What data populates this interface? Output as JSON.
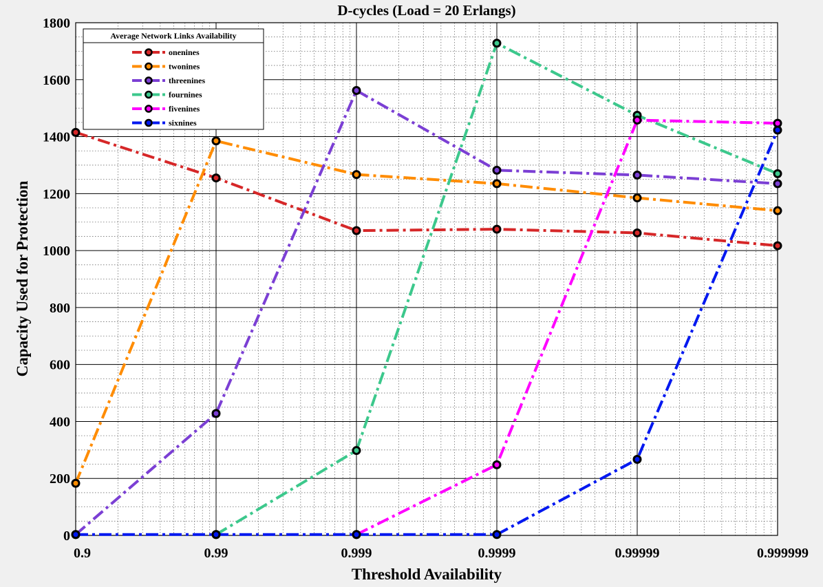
{
  "chart_data": {
    "type": "line",
    "title": "D-cycles (Load  = 20 Erlangs)",
    "xlabel": "Threshold Availability",
    "ylabel": "Capacity Used for Protection",
    "x_scale": "log",
    "x": [
      0.9,
      0.99,
      0.999,
      0.9999,
      0.99999,
      0.999999
    ],
    "x_tick_labels": [
      "0.9",
      "0.99",
      "0.999",
      "0.9999",
      "0.99999",
      "0.999999"
    ],
    "ylim": [
      0,
      1800
    ],
    "y_ticks": [
      0,
      200,
      400,
      600,
      800,
      1000,
      1200,
      1400,
      1600,
      1800
    ],
    "grid": true,
    "minor_grid": true,
    "legend": {
      "title": "Average Network Links Availability",
      "position": "top-left"
    },
    "series": [
      {
        "name": "onenines",
        "color": "#d62728",
        "values": [
          1415,
          1255,
          1070,
          1075,
          1062,
          1017
        ]
      },
      {
        "name": "twonines",
        "color": "#ff8c00",
        "values": [
          183,
          1385,
          1267,
          1235,
          1185,
          1140
        ]
      },
      {
        "name": "threenines",
        "color": "#7b3fd4",
        "values": [
          3,
          428,
          1562,
          1282,
          1265,
          1235
        ]
      },
      {
        "name": "fournines",
        "color": "#3cc88c",
        "values": [
          null,
          3,
          298,
          1728,
          1475,
          1270
        ]
      },
      {
        "name": "fivenines",
        "color": "#ff00ff",
        "values": [
          null,
          null,
          3,
          248,
          1458,
          1447
        ]
      },
      {
        "name": "sixnines",
        "color": "#0018f0",
        "values": [
          3,
          3,
          3,
          3,
          267,
          1423
        ]
      }
    ]
  }
}
